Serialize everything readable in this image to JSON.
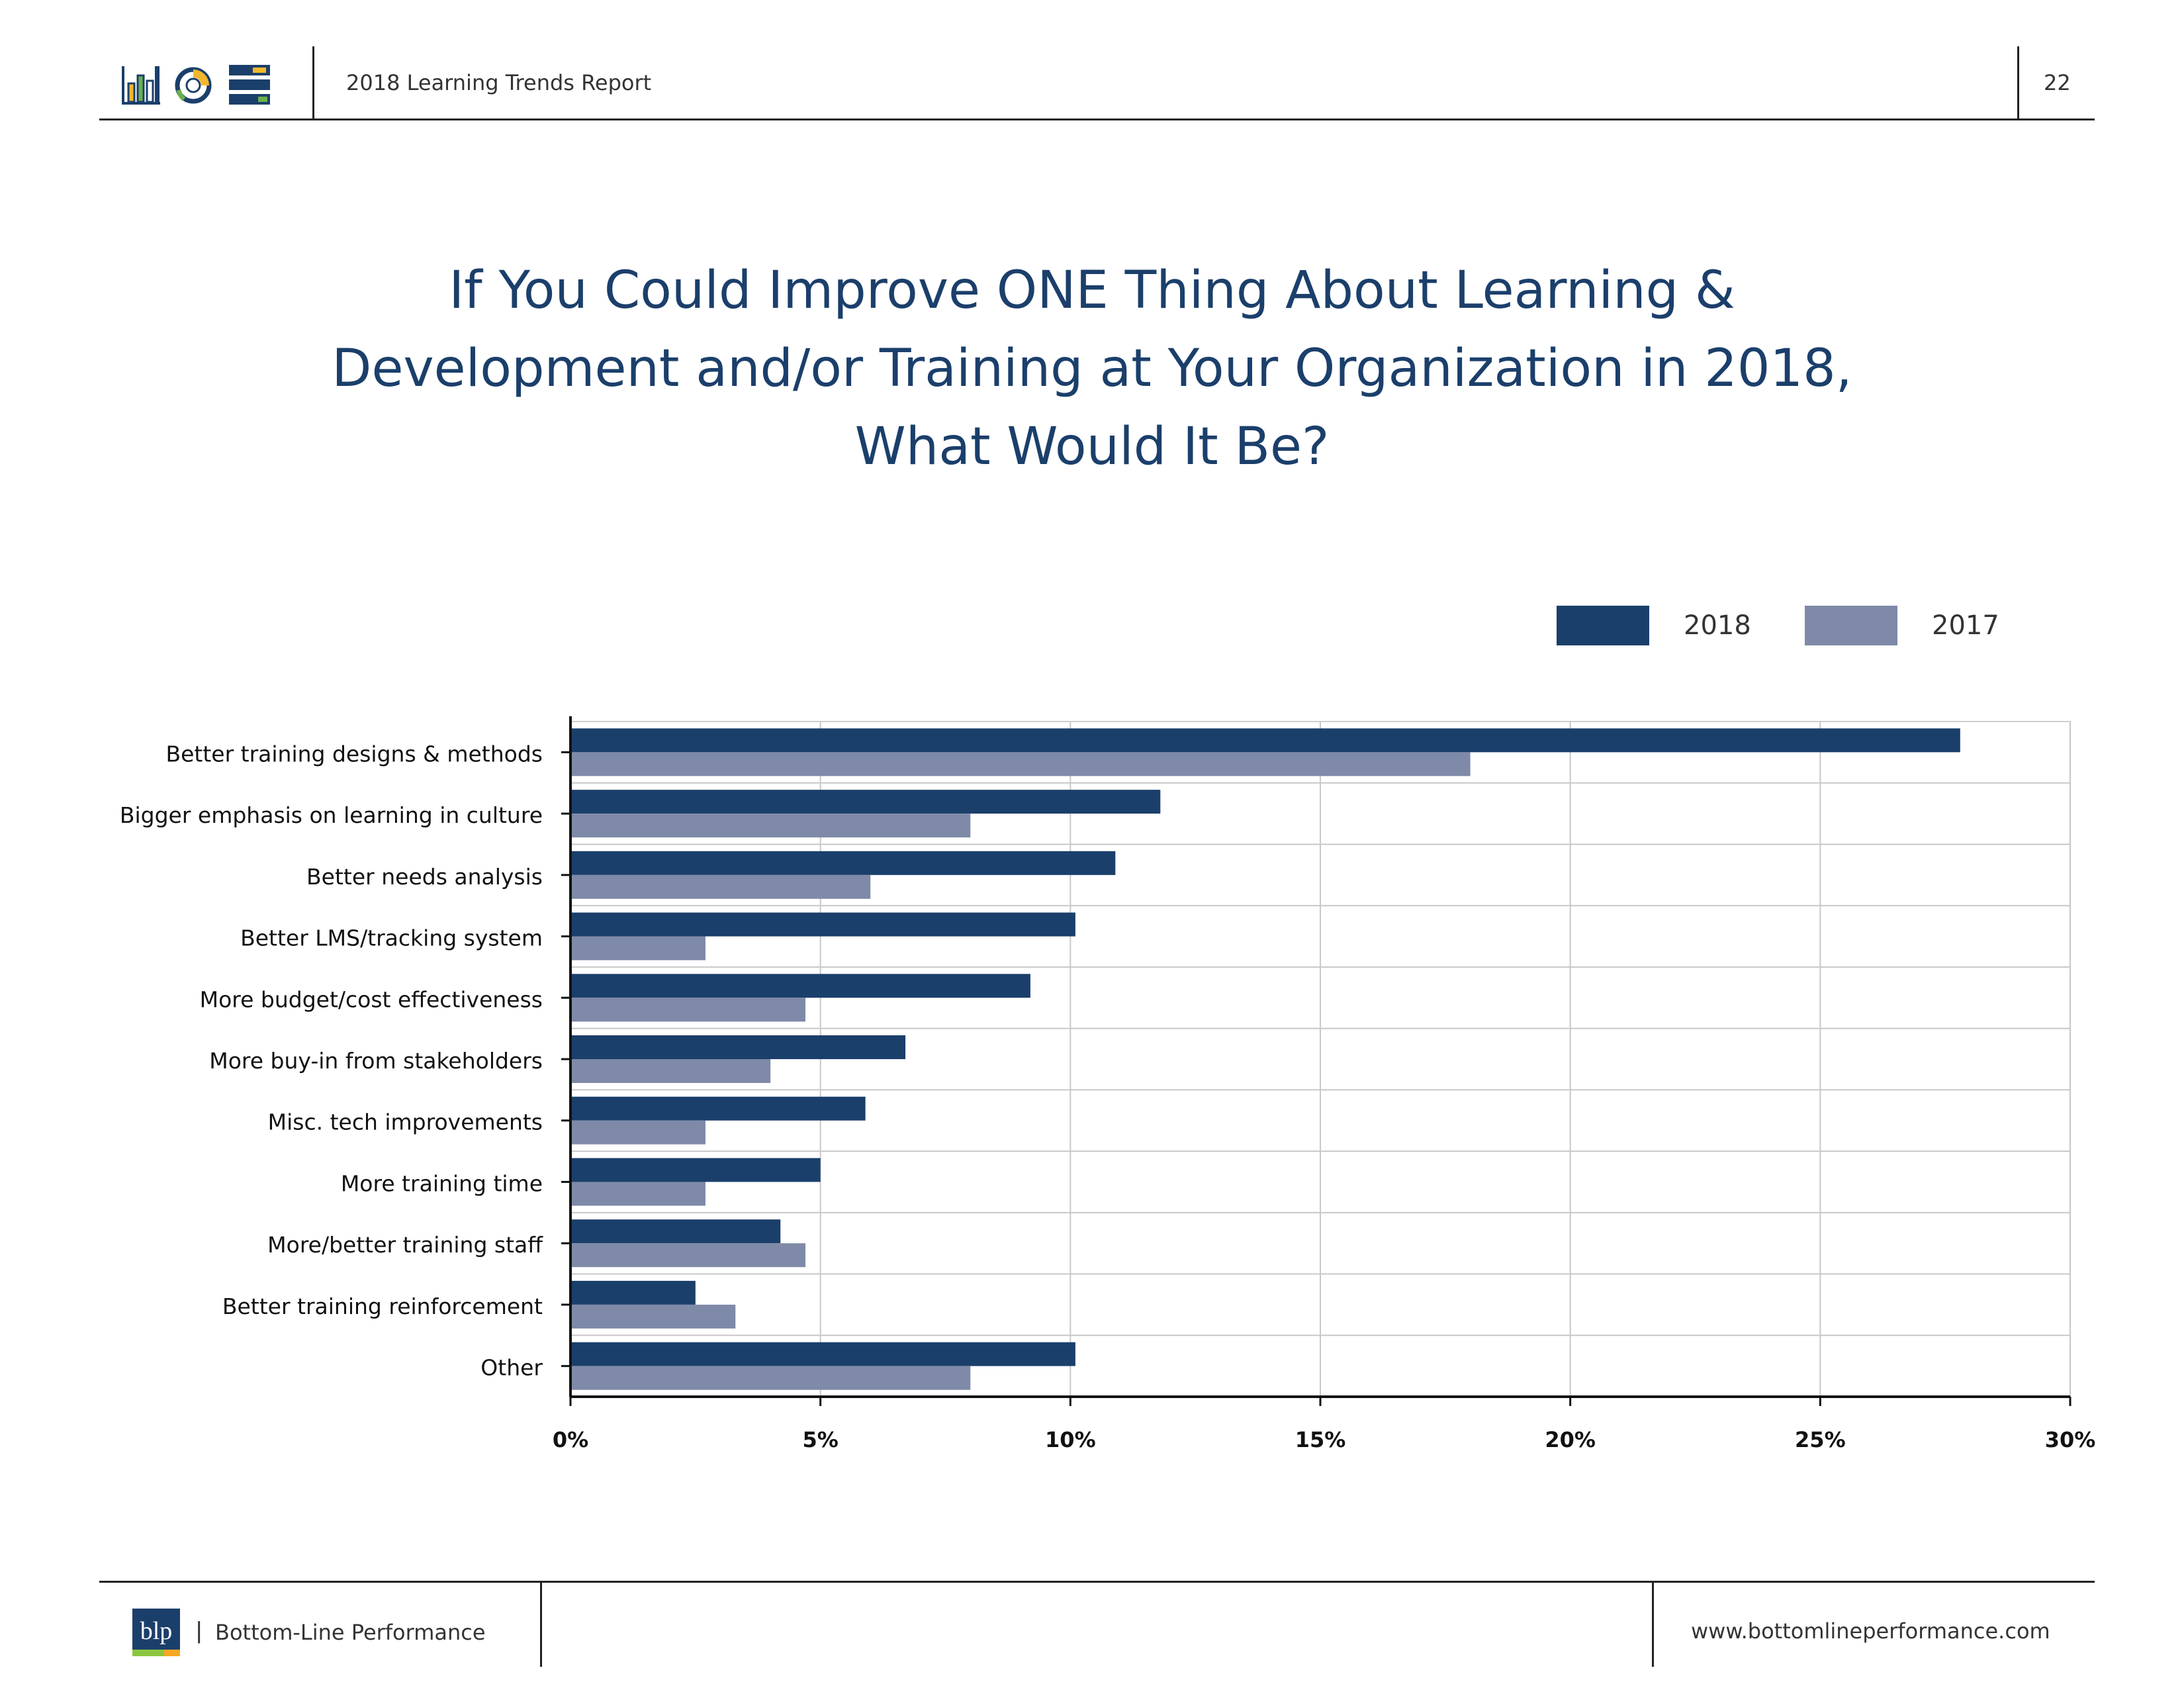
{
  "header": {
    "report_title": "2018 Learning Trends Report",
    "page_number": "22",
    "icons": [
      "bar-chart-icon",
      "donut-chart-icon",
      "list-chart-icon"
    ]
  },
  "footer": {
    "logo_text": "blp",
    "separator": "|",
    "company": "Bottom-Line Performance",
    "website": "www.bottomlineperformance.com"
  },
  "colors": {
    "series_2018": "#1b3f6b",
    "series_2017": "#7f8aa8",
    "title": "#1b3f6b",
    "logo_blue": "#1b3f6b",
    "logo_green": "#8cc63f",
    "logo_orange": "#f7a823",
    "icon_yellow": "#f2b72e",
    "icon_green": "#6ab04c"
  },
  "chart_data": {
    "type": "bar",
    "orientation": "horizontal",
    "title": "If You Could Improve ONE Thing About Learning &\nDevelopment and/or Training at Your Organization in 2018,\nWhat Would It Be?",
    "xlabel": "",
    "ylabel": "",
    "xlim": [
      0,
      30
    ],
    "x_ticks": [
      "0%",
      "5%",
      "10%",
      "15%",
      "20%",
      "25%",
      "30%"
    ],
    "x_tick_values": [
      0,
      5,
      10,
      15,
      20,
      25,
      30
    ],
    "grid": true,
    "legend_position": "top-right",
    "categories": [
      "Better training designs & methods",
      "Bigger emphasis on learning in culture",
      "Better needs analysis",
      "Better LMS/tracking system",
      "More budget/cost effectiveness",
      "More buy-in from stakeholders",
      "Misc. tech improvements",
      "More training time",
      "More/better training staff",
      "Better training reinforcement",
      "Other"
    ],
    "series": [
      {
        "name": "2018",
        "values": [
          27.8,
          11.8,
          10.9,
          10.1,
          9.2,
          6.7,
          5.9,
          5.0,
          4.2,
          2.5,
          10.1
        ]
      },
      {
        "name": "2017",
        "values": [
          18.0,
          8.0,
          6.0,
          2.7,
          4.7,
          4.0,
          2.7,
          2.7,
          4.7,
          3.3,
          8.0
        ]
      }
    ]
  }
}
